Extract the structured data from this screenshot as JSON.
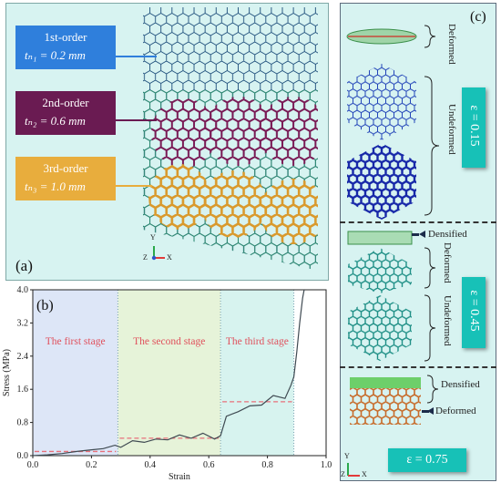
{
  "panel_a": {
    "letter": "(a)",
    "labels": [
      {
        "order": "1st-order",
        "thickness": "tₙ₁ = 0.2 mm",
        "color": "#2f7fdc"
      },
      {
        "order": "2nd-order",
        "thickness": "tₙ₂ = 0.6 mm",
        "color": "#6a1b52"
      },
      {
        "order": "3rd-order",
        "thickness": "tₙ₃ = 1.0 mm",
        "color": "#e8ad3d"
      }
    ],
    "axes": {
      "y": "Y",
      "x": "X",
      "z": "Z"
    }
  },
  "panel_b": {
    "letter": "(b)",
    "stages": [
      "The first stage",
      "The second stage",
      "The third stage"
    ],
    "stage_colors": [
      "#dde6f7",
      "#e6f3d9",
      "#d7f3ef"
    ],
    "chart_data": {
      "type": "line",
      "xlabel": "Strain",
      "ylabel": "Stress (MPa)",
      "xlim": [
        0.0,
        1.0
      ],
      "ylim": [
        0.0,
        4.0
      ],
      "xticks": [
        "0.0",
        "0.2",
        "0.4",
        "0.6",
        "0.8",
        "1.0"
      ],
      "yticks": [
        "0.0",
        "0.8",
        "1.6",
        "2.4",
        "3.2",
        "4.0"
      ],
      "stage_bounds": [
        0.29,
        0.64,
        0.89
      ],
      "plateaus": [
        {
          "x": [
            0.0,
            0.29
          ],
          "y": 0.1
        },
        {
          "x": [
            0.29,
            0.64
          ],
          "y": 0.42
        },
        {
          "x": [
            0.64,
            0.89
          ],
          "y": 1.3
        }
      ],
      "x": [
        0.0,
        0.05,
        0.1,
        0.15,
        0.2,
        0.24,
        0.28,
        0.3,
        0.34,
        0.38,
        0.42,
        0.46,
        0.5,
        0.54,
        0.58,
        0.62,
        0.64,
        0.66,
        0.7,
        0.74,
        0.78,
        0.82,
        0.86,
        0.88,
        0.89,
        0.9,
        0.91,
        0.92,
        0.925
      ],
      "y": [
        0.0,
        0.02,
        0.05,
        0.1,
        0.14,
        0.17,
        0.25,
        0.2,
        0.36,
        0.32,
        0.4,
        0.38,
        0.5,
        0.42,
        0.54,
        0.4,
        0.48,
        0.95,
        1.06,
        1.2,
        1.22,
        1.45,
        1.38,
        1.7,
        1.9,
        2.5,
        3.2,
        3.8,
        4.0
      ]
    }
  },
  "panel_c": {
    "letter": "(c)",
    "labels": {
      "deformed": "Deformed",
      "undeformed": "Undeformed",
      "densified": "Densified"
    },
    "eps": [
      "ε = 0.15",
      "ε = 0.45",
      "ε = 0.75"
    ],
    "axes": {
      "y": "Y",
      "x": "X",
      "z": "Z"
    }
  }
}
